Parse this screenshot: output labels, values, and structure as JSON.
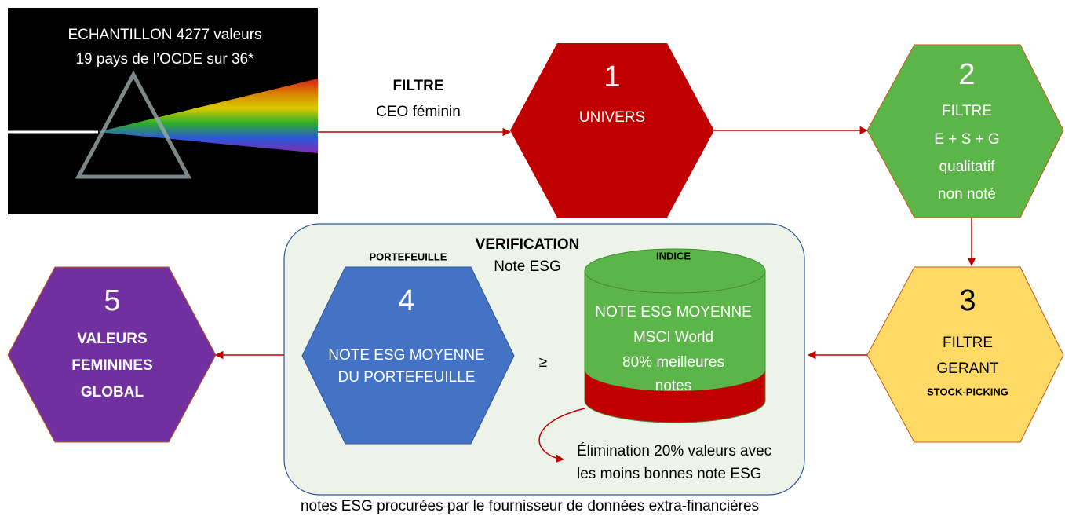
{
  "sample": {
    "lines": [
      "ECHANTILLON 4277 valeurs",
      "19 pays de l’OCDE sur 36*"
    ]
  },
  "filter": {
    "label": "FILTRE",
    "criterion": "CEO féminin"
  },
  "nodes": [
    {
      "number": "1",
      "lines": [
        "UNIVERS"
      ]
    },
    {
      "number": "2",
      "lines": [
        "FILTRE",
        "E + S + G",
        "qualitatif",
        "non noté"
      ]
    },
    {
      "number": "3",
      "lines": [
        "FILTRE",
        "GERANT",
        "STOCK-PICKING"
      ]
    },
    {
      "number": "4",
      "label": "PORTEFEUILLE",
      "lines": [
        "NOTE ESG MOYENNE",
        "DU PORTEFEUILLE"
      ]
    },
    {
      "number": "5",
      "lines": [
        "VALEURS",
        "FEMININES",
        "GLOBAL"
      ]
    }
  ],
  "verification": {
    "title": "VERIFICATION",
    "subtitle": "Note ESG",
    "comparator": "≥"
  },
  "index": {
    "label": "INDICE",
    "lines": [
      "NOTE ESG MOYENNE",
      "MSCI World",
      "80% meilleures",
      "notes"
    ]
  },
  "elimination": {
    "lines": [
      "Élimination 20% valeurs avec",
      "les moins bonnes note ESG"
    ]
  },
  "footer": "notes ESG procurées par le fournisseur de données extra-financières"
}
